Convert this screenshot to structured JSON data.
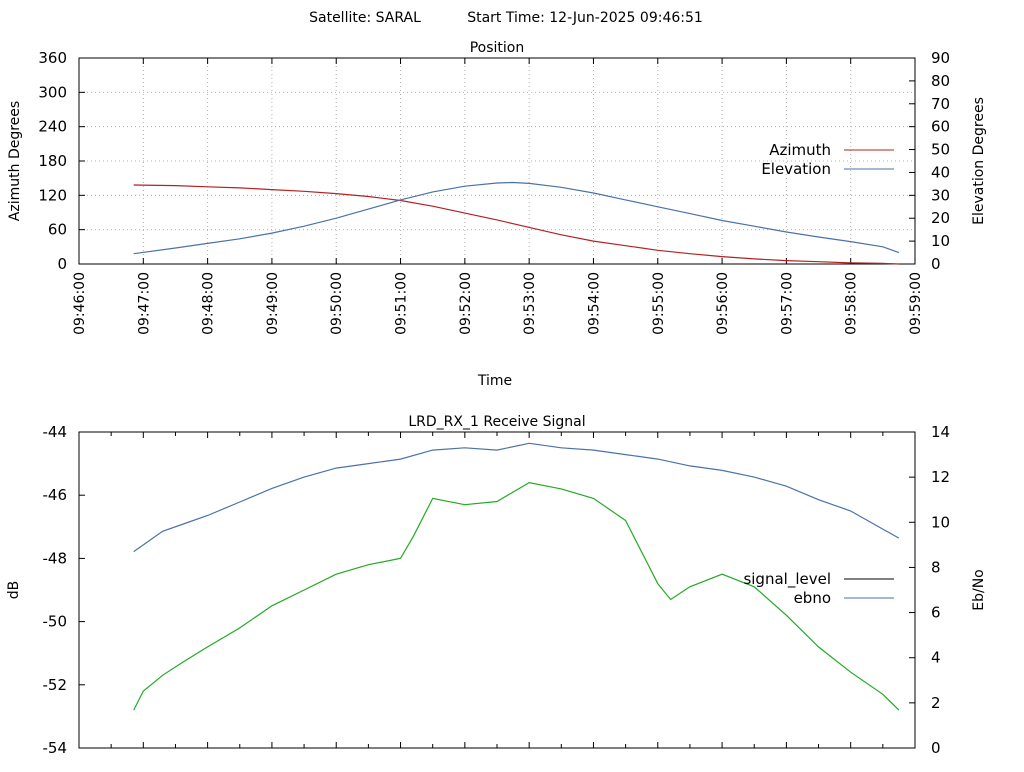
{
  "header": {
    "satellite": "Satellite: SARAL",
    "start_time": "Start Time: 12-Jun-2025 09:46:51"
  },
  "chart_data": [
    {
      "type": "line",
      "title": "Position",
      "xlabel": "Time",
      "ylabel": "Azimuth Degrees",
      "y2label": "Elevation Degrees",
      "x_ticks": [
        "09:46:00",
        "09:47:00",
        "09:48:00",
        "09:49:00",
        "09:50:00",
        "09:51:00",
        "09:52:00",
        "09:53:00",
        "09:54:00",
        "09:55:00",
        "09:56:00",
        "09:57:00",
        "09:58:00",
        "09:59:00"
      ],
      "xlim": [
        0,
        13
      ],
      "ylim": [
        0,
        360
      ],
      "y2lim": [
        0,
        90
      ],
      "y_ticks": [
        "0",
        "60",
        "120",
        "180",
        "240",
        "300",
        "360"
      ],
      "y2_ticks": [
        "0",
        "10",
        "20",
        "30",
        "40",
        "50",
        "60",
        "70",
        "80",
        "90"
      ],
      "legend_position": "right",
      "grid": true,
      "series": [
        {
          "name": "Azimuth",
          "axis": "left",
          "color": "#b22222",
          "x": [
            0.85,
            1.5,
            2,
            2.5,
            3,
            3.5,
            4,
            4.5,
            5,
            5.5,
            6,
            6.5,
            7,
            7.5,
            8,
            8.5,
            9,
            9.5,
            10,
            10.5,
            11,
            11.5,
            12,
            12.5,
            12.75
          ],
          "y": [
            138,
            137,
            135,
            133,
            130,
            127,
            123,
            118,
            111,
            101,
            89,
            77,
            64,
            51,
            40,
            32,
            24,
            18,
            13,
            9,
            6,
            4,
            2,
            1,
            0
          ]
        },
        {
          "name": "Elevation",
          "axis": "right",
          "color": "#4a72a8",
          "x": [
            0.85,
            1.5,
            2,
            2.5,
            3,
            3.5,
            4,
            4.5,
            5,
            5.5,
            6,
            6.5,
            6.75,
            7,
            7.5,
            8,
            8.5,
            9,
            9.5,
            10,
            10.5,
            11,
            11.5,
            12,
            12.5,
            12.75
          ],
          "y": [
            4.5,
            7,
            9,
            11,
            13.5,
            16.5,
            20,
            24,
            28,
            31.5,
            34,
            35.4,
            35.6,
            35.2,
            33.5,
            31,
            28,
            25,
            22,
            19,
            16.5,
            14,
            11.8,
            9.8,
            7.5,
            5
          ]
        }
      ]
    },
    {
      "type": "line",
      "title": "LRD_RX_1 Receive Signal",
      "ylabel": "dB",
      "y2label": "Eb/No",
      "xlim": [
        0,
        13
      ],
      "ylim": [
        -54,
        -44
      ],
      "y2lim": [
        0,
        14
      ],
      "y_ticks": [
        "-54",
        "-52",
        "-50",
        "-48",
        "-46",
        "-44"
      ],
      "y2_ticks": [
        "0",
        "2",
        "4",
        "6",
        "8",
        "10",
        "12",
        "14"
      ],
      "legend_position": "right",
      "grid": false,
      "series": [
        {
          "name": "signal_level",
          "axis": "left",
          "color": "#22aa22",
          "legend_color": "#000000",
          "x": [
            0.85,
            1,
            1.3,
            1.6,
            2,
            2.5,
            3,
            3.5,
            4,
            4.5,
            5,
            5.2,
            5.5,
            6,
            6.5,
            7,
            7.5,
            8,
            8.5,
            9,
            9.2,
            9.5,
            10,
            10.5,
            11,
            11.5,
            12,
            12.5,
            12.75
          ],
          "y": [
            -52.8,
            -52.2,
            -51.7,
            -51.3,
            -50.8,
            -50.2,
            -49.5,
            -49.0,
            -48.5,
            -48.2,
            -48.0,
            -47.3,
            -46.1,
            -46.3,
            -46.2,
            -45.6,
            -45.8,
            -46.1,
            -46.8,
            -48.8,
            -49.3,
            -48.9,
            -48.5,
            -48.9,
            -49.8,
            -50.8,
            -51.6,
            -52.3,
            -52.8
          ]
        },
        {
          "name": "ebno",
          "axis": "right",
          "color": "#4a72a8",
          "x": [
            0.85,
            1,
            1.3,
            1.6,
            2,
            2.5,
            3,
            3.5,
            4,
            4.5,
            5,
            5.5,
            6,
            6.5,
            7,
            7.5,
            8,
            8.5,
            9,
            9.5,
            10,
            10.5,
            11,
            11.5,
            12,
            12.5,
            12.75
          ],
          "y": [
            8.7,
            9,
            9.6,
            9.9,
            10.3,
            10.9,
            11.5,
            12,
            12.4,
            12.6,
            12.8,
            13.2,
            13.3,
            13.2,
            13.5,
            13.3,
            13.2,
            13.0,
            12.8,
            12.5,
            12.3,
            12.0,
            11.6,
            11,
            10.5,
            9.7,
            9.3
          ]
        }
      ]
    }
  ]
}
